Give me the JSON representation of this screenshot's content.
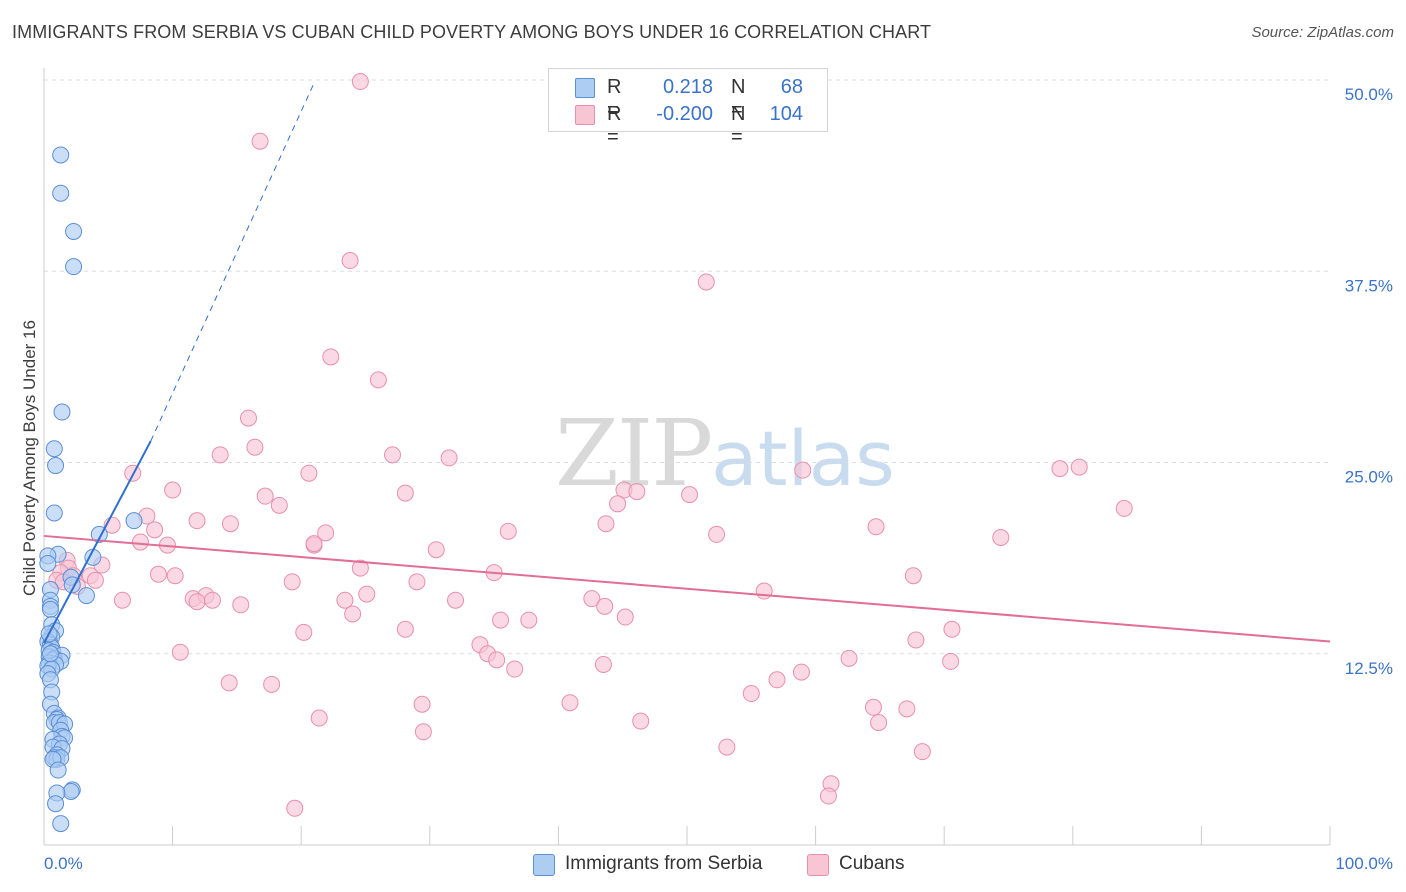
{
  "title": "IMMIGRANTS FROM SERBIA VS CUBAN CHILD POVERTY AMONG BOYS UNDER 16 CORRELATION CHART",
  "source": "Source: ZipAtlas.com",
  "watermark": {
    "zip": "ZIP",
    "atlas": "atlas"
  },
  "legend": {
    "rows": [
      {
        "r_label": "R =",
        "r_value": "0.218",
        "n_label": "N =",
        "n_value": "68"
      },
      {
        "r_label": "R =",
        "r_value": "-0.200",
        "n_label": "N =",
        "n_value": "104"
      }
    ]
  },
  "bottom_legend": [
    "Immigrants from Serbia",
    "Cubans"
  ],
  "colors": {
    "serbia_fill": "#aecdf2",
    "serbia_stroke": "#5b8fd6",
    "serbia_line": "#2f6fce",
    "cuba_fill": "#f8c5d5",
    "cuba_stroke": "#e890ab",
    "cuba_line": "#e26d97",
    "grid": "#dddddd",
    "tick_label": "#3b73c8"
  },
  "chart_data": {
    "type": "scatter",
    "title": "IMMIGRANTS FROM SERBIA VS CUBAN CHILD POVERTY AMONG BOYS UNDER 16 CORRELATION CHART",
    "xlabel": "",
    "ylabel": "Child Poverty Among Boys Under 16",
    "xlim": [
      0,
      100
    ],
    "ylim": [
      0,
      50
    ],
    "x_tick_labels": [
      "0.0%",
      "100.0%"
    ],
    "y_ticks": [
      12.5,
      25.0,
      37.5,
      50.0
    ],
    "y_tick_labels": [
      "12.5%",
      "25.0%",
      "37.5%",
      "50.0%"
    ],
    "grid": true,
    "series": [
      {
        "name": "Immigrants from Serbia",
        "r": 0.218,
        "n": 68,
        "trend": {
          "x0": 0,
          "y0": 13.2,
          "x1": 8.3,
          "y1": 26.4,
          "dash_to_x": 21.0,
          "dash_to_y": 49.8
        },
        "points": [
          [
            1.3,
            45.1
          ],
          [
            1.3,
            42.6
          ],
          [
            2.3,
            40.1
          ],
          [
            2.3,
            37.8
          ],
          [
            1.4,
            28.3
          ],
          [
            0.8,
            25.9
          ],
          [
            0.9,
            24.8
          ],
          [
            0.8,
            21.7
          ],
          [
            7.0,
            21.2
          ],
          [
            4.3,
            20.3
          ],
          [
            3.8,
            18.8
          ],
          [
            1.1,
            19.0
          ],
          [
            0.3,
            18.9
          ],
          [
            0.3,
            18.4
          ],
          [
            2.1,
            17.5
          ],
          [
            0.5,
            16.7
          ],
          [
            2.2,
            17.0
          ],
          [
            3.3,
            16.3
          ],
          [
            0.5,
            16.0
          ],
          [
            0.5,
            15.6
          ],
          [
            0.5,
            15.4
          ],
          [
            0.6,
            14.4
          ],
          [
            0.9,
            14.0
          ],
          [
            0.6,
            13.6
          ],
          [
            0.3,
            13.3
          ],
          [
            0.5,
            13.1
          ],
          [
            0.6,
            12.9
          ],
          [
            0.4,
            12.7
          ],
          [
            0.7,
            12.6
          ],
          [
            1.4,
            12.4
          ],
          [
            0.4,
            12.3
          ],
          [
            0.8,
            12.2
          ],
          [
            0.7,
            12.1
          ],
          [
            1.3,
            12.0
          ],
          [
            0.4,
            11.9
          ],
          [
            0.9,
            11.8
          ],
          [
            0.3,
            11.7
          ],
          [
            0.6,
            11.5
          ],
          [
            0.3,
            11.2
          ],
          [
            0.5,
            10.8
          ],
          [
            0.6,
            10.0
          ],
          [
            0.5,
            9.2
          ],
          [
            0.8,
            8.6
          ],
          [
            1.1,
            8.3
          ],
          [
            1.0,
            8.2
          ],
          [
            0.8,
            8.0
          ],
          [
            1.2,
            8.0
          ],
          [
            1.6,
            7.9
          ],
          [
            1.3,
            7.5
          ],
          [
            1.4,
            7.1
          ],
          [
            1.6,
            7.0
          ],
          [
            0.7,
            6.9
          ],
          [
            1.2,
            6.6
          ],
          [
            0.7,
            6.4
          ],
          [
            1.4,
            6.3
          ],
          [
            1.0,
            5.9
          ],
          [
            0.8,
            5.7
          ],
          [
            1.0,
            5.6
          ],
          [
            1.3,
            5.7
          ],
          [
            0.7,
            5.6
          ],
          [
            1.1,
            4.9
          ],
          [
            2.2,
            3.6
          ],
          [
            2.1,
            3.5
          ],
          [
            1.0,
            3.4
          ],
          [
            0.9,
            2.7
          ],
          [
            1.3,
            1.4
          ],
          [
            0.5,
            12.5
          ],
          [
            0.4,
            13.8
          ]
        ]
      },
      {
        "name": "Cubans",
        "r": -0.2,
        "n": 104,
        "trend": {
          "x0": 0,
          "y0": 20.2,
          "x1": 100,
          "y1": 13.3
        },
        "points": [
          [
            24.6,
            49.9
          ],
          [
            16.8,
            46.0
          ],
          [
            23.8,
            38.2
          ],
          [
            51.5,
            36.8
          ],
          [
            22.3,
            31.9
          ],
          [
            26.0,
            30.4
          ],
          [
            15.9,
            27.9
          ],
          [
            16.4,
            26.0
          ],
          [
            13.7,
            25.5
          ],
          [
            27.1,
            25.5
          ],
          [
            31.5,
            25.3
          ],
          [
            6.9,
            24.3
          ],
          [
            20.6,
            24.3
          ],
          [
            59.0,
            24.5
          ],
          [
            80.5,
            24.7
          ],
          [
            79.0,
            24.6
          ],
          [
            10.0,
            23.2
          ],
          [
            28.1,
            23.0
          ],
          [
            45.1,
            23.2
          ],
          [
            46.1,
            23.1
          ],
          [
            50.2,
            22.9
          ],
          [
            17.2,
            22.8
          ],
          [
            18.3,
            22.2
          ],
          [
            44.6,
            22.3
          ],
          [
            84.0,
            22.0
          ],
          [
            8.0,
            21.5
          ],
          [
            11.9,
            21.2
          ],
          [
            14.5,
            21.0
          ],
          [
            43.7,
            21.0
          ],
          [
            5.3,
            20.9
          ],
          [
            36.1,
            20.5
          ],
          [
            64.7,
            20.8
          ],
          [
            8.6,
            20.6
          ],
          [
            21.9,
            20.4
          ],
          [
            52.3,
            20.3
          ],
          [
            74.4,
            20.1
          ],
          [
            7.5,
            19.8
          ],
          [
            9.6,
            19.6
          ],
          [
            21.0,
            19.6
          ],
          [
            30.5,
            19.3
          ],
          [
            1.8,
            18.6
          ],
          [
            4.5,
            18.3
          ],
          [
            1.9,
            18.1
          ],
          [
            1.3,
            17.8
          ],
          [
            24.6,
            18.1
          ],
          [
            35.0,
            17.8
          ],
          [
            1.0,
            17.3
          ],
          [
            2.3,
            17.6
          ],
          [
            3.6,
            17.6
          ],
          [
            8.9,
            17.7
          ],
          [
            10.2,
            17.6
          ],
          [
            67.6,
            17.6
          ],
          [
            1.5,
            17.2
          ],
          [
            4.0,
            17.3
          ],
          [
            19.3,
            17.2
          ],
          [
            29.0,
            17.2
          ],
          [
            2.6,
            16.9
          ],
          [
            56.0,
            16.6
          ],
          [
            25.1,
            16.4
          ],
          [
            6.1,
            16.0
          ],
          [
            11.6,
            16.1
          ],
          [
            12.6,
            16.3
          ],
          [
            11.9,
            15.9
          ],
          [
            13.1,
            16.0
          ],
          [
            15.3,
            15.7
          ],
          [
            32.0,
            16.0
          ],
          [
            42.6,
            16.1
          ],
          [
            43.6,
            15.6
          ],
          [
            24.0,
            15.1
          ],
          [
            35.5,
            14.7
          ],
          [
            37.7,
            14.7
          ],
          [
            70.6,
            14.1
          ],
          [
            28.1,
            14.1
          ],
          [
            20.2,
            13.9
          ],
          [
            67.8,
            13.4
          ],
          [
            33.9,
            13.1
          ],
          [
            34.5,
            12.5
          ],
          [
            10.6,
            12.6
          ],
          [
            35.2,
            12.1
          ],
          [
            62.6,
            12.2
          ],
          [
            70.5,
            12.0
          ],
          [
            36.6,
            11.5
          ],
          [
            43.5,
            11.8
          ],
          [
            58.9,
            11.3
          ],
          [
            57.0,
            10.8
          ],
          [
            14.4,
            10.6
          ],
          [
            17.7,
            10.5
          ],
          [
            55.0,
            9.9
          ],
          [
            29.4,
            9.2
          ],
          [
            40.9,
            9.3
          ],
          [
            64.5,
            9.0
          ],
          [
            67.1,
            8.9
          ],
          [
            21.4,
            8.3
          ],
          [
            46.4,
            8.1
          ],
          [
            64.9,
            8.0
          ],
          [
            29.5,
            7.4
          ],
          [
            53.1,
            6.4
          ],
          [
            68.3,
            6.1
          ],
          [
            61.2,
            4.0
          ],
          [
            61.0,
            3.2
          ],
          [
            19.5,
            2.4
          ],
          [
            21.0,
            19.7
          ],
          [
            23.4,
            16.0
          ],
          [
            45.2,
            14.9
          ]
        ]
      }
    ]
  }
}
